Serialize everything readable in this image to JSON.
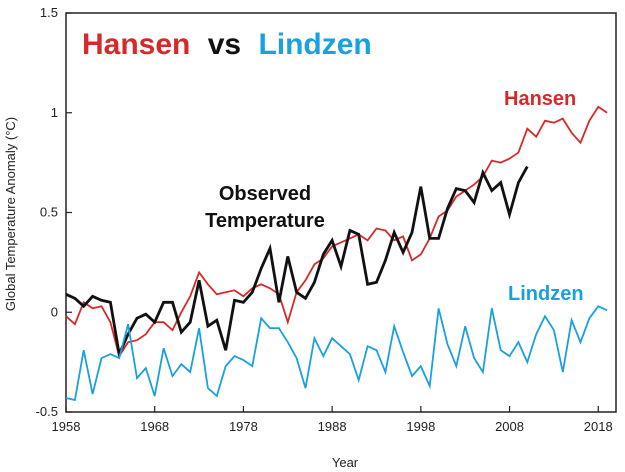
{
  "chart_data": {
    "type": "line",
    "title": {
      "part1": "Hansen",
      "part2": "vs",
      "part3": "Lindzen",
      "colors": {
        "part1": "#d62a2a",
        "part2": "#111111",
        "part3": "#1aa0e0"
      }
    },
    "xlabel": "Year",
    "ylabel": "Global Temperature Anomaly (°C)",
    "xlim": [
      1958,
      2020
    ],
    "ylim": [
      -0.5,
      1.5
    ],
    "xticks": [
      1958,
      1968,
      1978,
      1988,
      1998,
      2008,
      2018
    ],
    "yticks": [
      -0.5,
      0,
      0.5,
      1,
      1.5
    ],
    "grid": false,
    "annotation": {
      "line1": "Observed",
      "line2": "Temperature"
    },
    "series": [
      {
        "name": "Hansen",
        "color": "#d62a2a",
        "x": [
          1958,
          1959,
          1960,
          1961,
          1962,
          1963,
          1964,
          1965,
          1966,
          1967,
          1968,
          1969,
          1970,
          1971,
          1972,
          1973,
          1974,
          1975,
          1976,
          1977,
          1978,
          1979,
          1980,
          1981,
          1982,
          1983,
          1984,
          1985,
          1986,
          1987,
          1988,
          1989,
          1990,
          1991,
          1992,
          1993,
          1994,
          1995,
          1996,
          1997,
          1998,
          1999,
          2000,
          2001,
          2002,
          2003,
          2004,
          2005,
          2006,
          2007,
          2008,
          2009,
          2010,
          2011,
          2012,
          2013,
          2014,
          2015,
          2016,
          2017,
          2018,
          2019
        ],
        "values": [
          -0.02,
          -0.06,
          0.05,
          0.02,
          0.03,
          -0.05,
          -0.22,
          -0.15,
          -0.14,
          -0.11,
          -0.05,
          -0.05,
          -0.09,
          0.0,
          0.08,
          0.2,
          0.14,
          0.09,
          0.1,
          0.11,
          0.08,
          0.12,
          0.14,
          0.12,
          0.09,
          -0.05,
          0.1,
          0.16,
          0.24,
          0.27,
          0.33,
          0.35,
          0.37,
          0.39,
          0.36,
          0.42,
          0.41,
          0.36,
          0.38,
          0.26,
          0.29,
          0.37,
          0.48,
          0.51,
          0.58,
          0.61,
          0.64,
          0.68,
          0.76,
          0.75,
          0.77,
          0.8,
          0.92,
          0.88,
          0.96,
          0.95,
          0.97,
          0.9,
          0.85,
          0.96,
          1.03,
          1.0
        ]
      },
      {
        "name": "Observed Temperature",
        "color": "#111111",
        "x": [
          1958,
          1959,
          1960,
          1961,
          1962,
          1963,
          1964,
          1965,
          1966,
          1967,
          1968,
          1969,
          1970,
          1971,
          1972,
          1973,
          1974,
          1975,
          1976,
          1977,
          1978,
          1979,
          1980,
          1981,
          1982,
          1983,
          1984,
          1985,
          1986,
          1987,
          1988,
          1989,
          1990,
          1991,
          1992,
          1993,
          1994,
          1995,
          1996,
          1997,
          1998,
          1999,
          2000,
          2001,
          2002,
          2003,
          2004,
          2005,
          2006,
          2007,
          2008,
          2009,
          2010
        ],
        "values": [
          0.09,
          0.07,
          0.03,
          0.08,
          0.06,
          0.05,
          -0.21,
          -0.11,
          -0.03,
          -0.01,
          -0.05,
          0.05,
          0.05,
          -0.1,
          -0.05,
          0.16,
          -0.07,
          -0.04,
          -0.19,
          0.06,
          0.05,
          0.1,
          0.22,
          0.32,
          0.05,
          0.28,
          0.1,
          0.07,
          0.15,
          0.29,
          0.36,
          0.23,
          0.41,
          0.39,
          0.14,
          0.15,
          0.26,
          0.4,
          0.3,
          0.4,
          0.63,
          0.37,
          0.37,
          0.52,
          0.62,
          0.61,
          0.55,
          0.7,
          0.61,
          0.65,
          0.49,
          0.65,
          0.73
        ]
      },
      {
        "name": "Lindzen",
        "color": "#1aa0e0",
        "x": [
          1958,
          1959,
          1960,
          1961,
          1962,
          1963,
          1964,
          1965,
          1966,
          1967,
          1968,
          1969,
          1970,
          1971,
          1972,
          1973,
          1974,
          1975,
          1976,
          1977,
          1978,
          1979,
          1980,
          1981,
          1982,
          1983,
          1984,
          1985,
          1986,
          1987,
          1988,
          1989,
          1990,
          1991,
          1992,
          1993,
          1994,
          1995,
          1996,
          1997,
          1998,
          1999,
          2000,
          2001,
          2002,
          2003,
          2004,
          2005,
          2006,
          2007,
          2008,
          2009,
          2010,
          2011,
          2012,
          2013,
          2014,
          2015,
          2016,
          2017,
          2018,
          2019
        ],
        "values": [
          -0.43,
          -0.44,
          -0.19,
          -0.41,
          -0.23,
          -0.21,
          -0.23,
          -0.06,
          -0.33,
          -0.28,
          -0.42,
          -0.18,
          -0.32,
          -0.26,
          -0.3,
          -0.08,
          -0.38,
          -0.42,
          -0.27,
          -0.22,
          -0.24,
          -0.27,
          -0.03,
          -0.08,
          -0.08,
          -0.15,
          -0.23,
          -0.38,
          -0.13,
          -0.22,
          -0.13,
          -0.17,
          -0.21,
          -0.34,
          -0.17,
          -0.19,
          -0.3,
          -0.07,
          -0.2,
          -0.32,
          -0.27,
          -0.37,
          0.02,
          -0.16,
          -0.27,
          -0.07,
          -0.23,
          -0.3,
          0.02,
          -0.19,
          -0.22,
          -0.15,
          -0.25,
          -0.11,
          -0.02,
          -0.09,
          -0.3,
          -0.04,
          -0.15,
          -0.03,
          0.03,
          0.01
        ]
      }
    ],
    "series_labels": {
      "hansen": "Hansen",
      "lindzen": "Lindzen"
    }
  }
}
